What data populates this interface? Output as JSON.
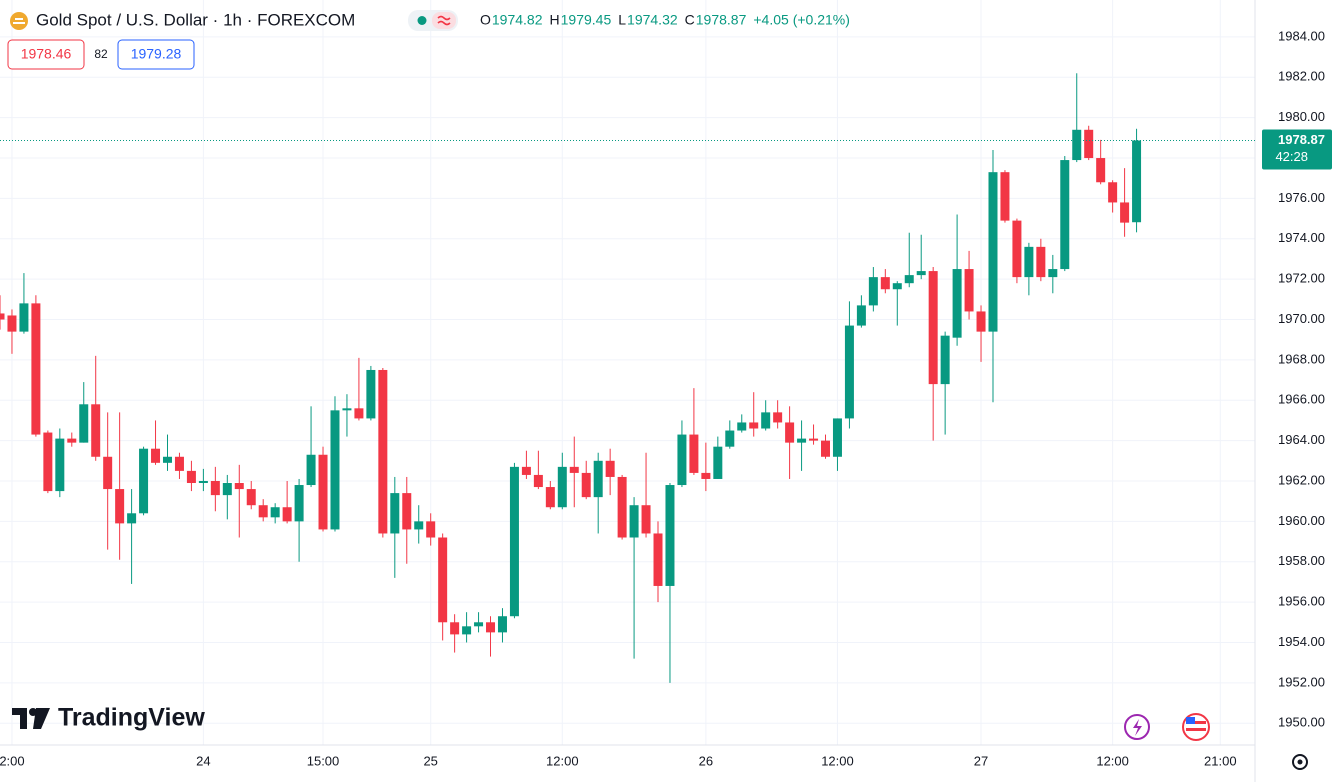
{
  "chart_data": {
    "type": "candlestick",
    "title": "Gold Spot / U.S. Dollar · 1h · FOREXCOM",
    "ohlc_keys": [
      "O",
      "H",
      "L",
      "C"
    ],
    "change": "+4.05 (+0.21%)",
    "bid": "1978.46",
    "spread": "82",
    "ask": "1979.28",
    "countdown": "42:28",
    "logo": "TradingView",
    "up_color": "#089981",
    "down_color": "#f23645",
    "grid": true,
    "xlim": [
      0,
      104.9
    ],
    "xticks": [
      {
        "value": 1,
        "label": "2:00"
      },
      {
        "value": 17,
        "label": "24"
      },
      {
        "value": 27,
        "label": "15:00"
      },
      {
        "value": 36,
        "label": "25"
      },
      {
        "value": 47,
        "label": "12:00"
      },
      {
        "value": 59,
        "label": "26"
      },
      {
        "value": 70,
        "label": "12:00"
      },
      {
        "value": 82,
        "label": "27"
      },
      {
        "value": 93,
        "label": "12:00"
      },
      {
        "value": 102,
        "label": "21:00"
      }
    ],
    "ylim": [
      1948.92,
      1985.83
    ],
    "yticks": [
      {
        "value": 1950,
        "label": "1950.00"
      },
      {
        "value": 1952,
        "label": "1952.00"
      },
      {
        "value": 1954,
        "label": "1954.00"
      },
      {
        "value": 1956,
        "label": "1956.00"
      },
      {
        "value": 1958,
        "label": "1958.00"
      },
      {
        "value": 1960,
        "label": "1960.00"
      },
      {
        "value": 1962,
        "label": "1962.00"
      },
      {
        "value": 1964,
        "label": "1964.00"
      },
      {
        "value": 1966,
        "label": "1966.00"
      },
      {
        "value": 1968,
        "label": "1968.00"
      },
      {
        "value": 1970,
        "label": "1970.00"
      },
      {
        "value": 1972,
        "label": "1972.00"
      },
      {
        "value": 1974,
        "label": "1974.00"
      },
      {
        "value": 1976,
        "label": "1976.00"
      },
      {
        "value": 1978,
        "label": "1978.00"
      },
      {
        "value": 1980,
        "label": "1980.00"
      },
      {
        "value": 1982,
        "label": "1982.00"
      },
      {
        "value": 1984,
        "label": "1984.00"
      }
    ],
    "open": [
      1970.3,
      1970.2,
      1969.4,
      1970.8,
      1964.4,
      1961.5,
      1964.1,
      1963.9,
      1965.8,
      1963.2,
      1961.6,
      1959.9,
      1960.4,
      1963.6,
      1962.9,
      1963.2,
      1962.5,
      1961.9,
      1962.0,
      1961.3,
      1961.9,
      1961.6,
      1960.8,
      1960.2,
      1960.7,
      1960.0,
      1961.8,
      1963.3,
      1959.6,
      1965.5,
      1965.6,
      1965.1,
      1967.5,
      1959.4,
      1961.4,
      1959.6,
      1960.0,
      1959.2,
      1955.0,
      1954.4,
      1954.8,
      1955.0,
      1954.5,
      1955.3,
      1962.7,
      1962.3,
      1961.7,
      1960.7,
      1962.7,
      1962.4,
      1961.2,
      1963.0,
      1962.2,
      1959.2,
      1960.8,
      1959.4,
      1956.8,
      1961.8,
      1964.3,
      1962.4,
      1962.1,
      1963.7,
      1964.5,
      1964.9,
      1964.6,
      1965.4,
      1964.9,
      1963.9,
      1964.1,
      1964.0,
      1963.2,
      1965.1,
      1969.7,
      1970.7,
      1972.1,
      1971.5,
      1971.8,
      1972.2,
      1972.4,
      1966.8,
      1969.1,
      1972.5,
      1970.4,
      1969.4,
      1977.3,
      1974.9,
      1972.1,
      1973.6,
      1972.1,
      1972.5,
      1977.9,
      1979.4,
      1978.0,
      1976.8,
      1975.8,
      1974.82
    ],
    "high": [
      1971.2,
      1970.5,
      1972.3,
      1971.2,
      1964.5,
      1964.6,
      1964.4,
      1966.9,
      1968.2,
      1965.4,
      1965.4,
      1961.6,
      1963.7,
      1965.0,
      1964.3,
      1963.4,
      1963.0,
      1962.6,
      1962.7,
      1962.3,
      1962.8,
      1962.0,
      1961.1,
      1960.9,
      1962.0,
      1962.1,
      1965.7,
      1963.7,
      1966.2,
      1966.3,
      1968.1,
      1967.7,
      1967.6,
      1962.2,
      1962.2,
      1960.8,
      1960.4,
      1959.4,
      1955.4,
      1955.5,
      1955.5,
      1955.3,
      1955.7,
      1962.9,
      1963.5,
      1963.5,
      1962.0,
      1963.4,
      1964.2,
      1963.0,
      1963.4,
      1963.6,
      1962.3,
      1961.2,
      1963.4,
      1960.0,
      1961.9,
      1965.0,
      1966.6,
      1963.9,
      1964.2,
      1965.0,
      1965.3,
      1966.4,
      1966.0,
      1966.0,
      1965.7,
      1965.0,
      1964.8,
      1964.3,
      1965.1,
      1970.9,
      1971.2,
      1972.6,
      1972.5,
      1971.9,
      1974.3,
      1974.2,
      1972.6,
      1969.4,
      1975.2,
      1973.4,
      1970.7,
      1978.4,
      1977.4,
      1975.0,
      1973.8,
      1974.0,
      1973.2,
      1978.1,
      1982.2,
      1979.6,
      1978.9,
      1976.9,
      1977.5,
      1979.45
    ],
    "low": [
      1969.5,
      1968.3,
      1969.3,
      1964.2,
      1961.4,
      1961.2,
      1963.7,
      1963.9,
      1963.0,
      1958.6,
      1958.1,
      1956.9,
      1960.3,
      1962.8,
      1962.5,
      1962.1,
      1961.5,
      1961.5,
      1960.5,
      1960.1,
      1959.2,
      1960.6,
      1960.0,
      1959.9,
      1959.9,
      1958.0,
      1961.7,
      1959.5,
      1959.5,
      1964.2,
      1965.0,
      1965.0,
      1959.2,
      1957.2,
      1957.9,
      1958.9,
      1958.8,
      1954.1,
      1953.5,
      1954.0,
      1954.5,
      1953.3,
      1954.0,
      1955.2,
      1962.1,
      1961.6,
      1960.6,
      1960.6,
      1960.7,
      1961.1,
      1959.4,
      1961.3,
      1959.1,
      1953.2,
      1959.2,
      1956.0,
      1952.0,
      1961.7,
      1962.3,
      1961.5,
      1962.1,
      1963.6,
      1964.4,
      1964.2,
      1964.5,
      1964.6,
      1962.1,
      1962.5,
      1963.8,
      1963.1,
      1962.5,
      1964.6,
      1969.6,
      1970.4,
      1971.3,
      1969.7,
      1971.6,
      1972.0,
      1964.0,
      1964.3,
      1968.7,
      1970.0,
      1967.9,
      1965.9,
      1974.8,
      1971.8,
      1971.2,
      1971.9,
      1971.3,
      1972.4,
      1977.8,
      1977.9,
      1976.7,
      1975.3,
      1974.1,
      1974.32
    ],
    "close": [
      1970.0,
      1969.4,
      1970.8,
      1964.3,
      1961.5,
      1964.1,
      1963.9,
      1965.8,
      1963.2,
      1961.6,
      1959.9,
      1960.4,
      1963.6,
      1962.9,
      1963.2,
      1962.5,
      1961.9,
      1962.0,
      1961.3,
      1961.9,
      1961.6,
      1960.8,
      1960.2,
      1960.7,
      1960.0,
      1961.8,
      1963.3,
      1959.6,
      1965.5,
      1965.6,
      1965.1,
      1967.5,
      1959.4,
      1961.4,
      1959.6,
      1960.0,
      1959.2,
      1955.0,
      1954.4,
      1954.8,
      1955.0,
      1954.5,
      1955.3,
      1962.7,
      1962.3,
      1961.7,
      1960.7,
      1962.7,
      1962.4,
      1961.2,
      1963.0,
      1962.2,
      1959.2,
      1960.8,
      1959.4,
      1956.8,
      1961.8,
      1964.3,
      1962.4,
      1962.1,
      1963.7,
      1964.5,
      1964.9,
      1964.6,
      1965.4,
      1964.9,
      1963.9,
      1964.1,
      1964.0,
      1963.2,
      1965.1,
      1969.7,
      1970.7,
      1972.1,
      1971.5,
      1971.8,
      1972.2,
      1972.4,
      1966.8,
      1969.2,
      1972.5,
      1970.4,
      1969.4,
      1977.3,
      1974.9,
      1972.1,
      1973.6,
      1972.1,
      1972.5,
      1977.9,
      1979.4,
      1978.0,
      1976.8,
      1975.8,
      1974.8,
      1978.87
    ]
  }
}
